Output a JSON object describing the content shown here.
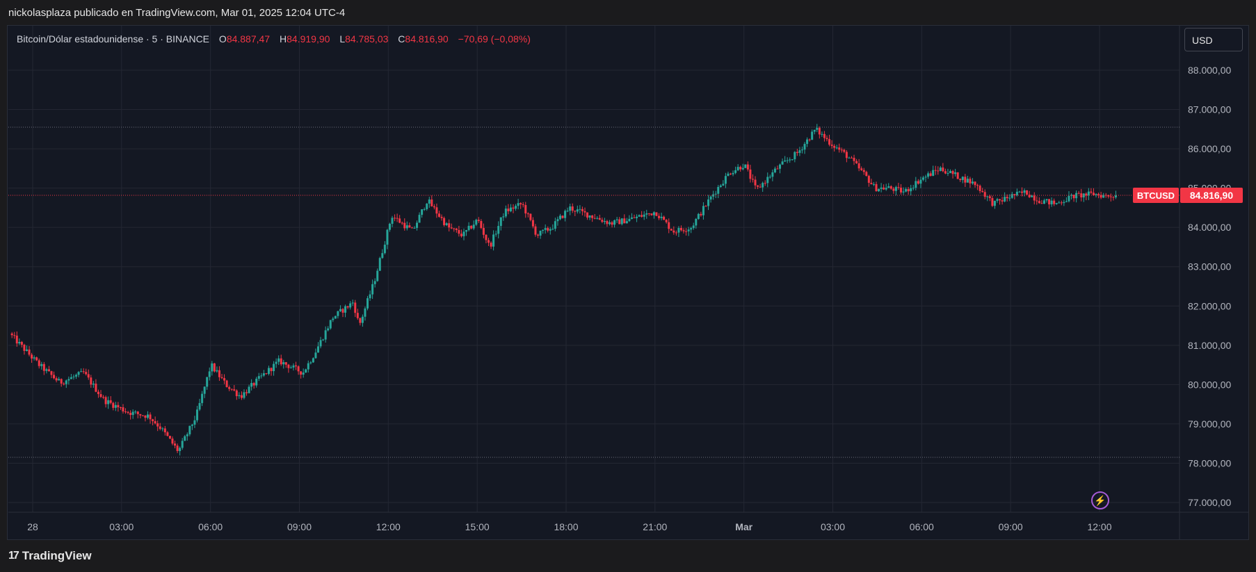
{
  "header": {
    "publisher_text": "nickolasplaza publicado en TradingView.com, Mar 01, 2025 12:04 UTC-4"
  },
  "symbol": {
    "name": "Bitcoin/Dólar estadounidense · 5 · BINANCE",
    "open_label": "O",
    "open": "84.887,47",
    "high_label": "H",
    "high": "84.919,90",
    "low_label": "L",
    "low": "84.785,03",
    "close_label": "C",
    "close": "84.816,90",
    "change": "−70,69 (−0,08%)"
  },
  "currency_button": {
    "label": "USD"
  },
  "price_tag": {
    "ticker": "BTCUSD",
    "price": "84.816,90"
  },
  "footer": {
    "brand": "TradingView"
  },
  "icons": {
    "flash": "lightning-icon",
    "logo": "tradingview-logo-icon"
  },
  "colors": {
    "up": "#26a69a",
    "down": "#f23645",
    "background": "#141823",
    "grid": "#242733",
    "text": "#b2b5be",
    "price_line": "#f23645",
    "level_line": "#6a6d78"
  },
  "chart_data": {
    "type": "candlestick",
    "y_ticks": [
      {
        "value": 77000,
        "label": "77.000,00"
      },
      {
        "value": 78000,
        "label": "78.000,00"
      },
      {
        "value": 79000,
        "label": "79.000,00"
      },
      {
        "value": 80000,
        "label": "80.000,00"
      },
      {
        "value": 81000,
        "label": "81.000,00"
      },
      {
        "value": 82000,
        "label": "82.000,00"
      },
      {
        "value": 83000,
        "label": "83.000,00"
      },
      {
        "value": 84000,
        "label": "84.000,00"
      },
      {
        "value": 85000,
        "label": "85.000,00"
      },
      {
        "value": 86000,
        "label": "86.000,00"
      },
      {
        "value": 87000,
        "label": "87.000,00"
      },
      {
        "value": 88000,
        "label": "88.000,00"
      }
    ],
    "x_ticks": [
      {
        "hour": 0,
        "label": "28",
        "bold": false
      },
      {
        "hour": 3,
        "label": "03:00",
        "bold": false
      },
      {
        "hour": 6,
        "label": "06:00",
        "bold": false
      },
      {
        "hour": 9,
        "label": "09:00",
        "bold": false
      },
      {
        "hour": 12,
        "label": "12:00",
        "bold": false
      },
      {
        "hour": 15,
        "label": "15:00",
        "bold": false
      },
      {
        "hour": 18,
        "label": "18:00",
        "bold": false
      },
      {
        "hour": 21,
        "label": "21:00",
        "bold": false
      },
      {
        "hour": 24,
        "label": "Mar",
        "bold": true
      },
      {
        "hour": 27,
        "label": "03:00",
        "bold": false
      },
      {
        "hour": 30,
        "label": "06:00",
        "bold": false
      },
      {
        "hour": 33,
        "label": "09:00",
        "bold": false
      },
      {
        "hour": 36,
        "label": "12:00",
        "bold": false
      }
    ],
    "y_range": [
      76800,
      88500
    ],
    "x_range_hours": [
      -0.8,
      38.2
    ],
    "last_price": 84816.9,
    "high_level": 86550,
    "low_level": 78150,
    "keypoints": [
      [
        -0.7,
        81300
      ],
      [
        0.3,
        80500
      ],
      [
        1.0,
        80050
      ],
      [
        1.8,
        80300
      ],
      [
        2.5,
        79600
      ],
      [
        3.3,
        79300
      ],
      [
        4.0,
        79200
      ],
      [
        4.4,
        78900
      ],
      [
        5.0,
        78300
      ],
      [
        5.6,
        79200
      ],
      [
        6.1,
        80500
      ],
      [
        6.6,
        80000
      ],
      [
        7.1,
        79700
      ],
      [
        7.8,
        80200
      ],
      [
        8.4,
        80600
      ],
      [
        9.2,
        80300
      ],
      [
        9.6,
        80800
      ],
      [
        10.2,
        81700
      ],
      [
        10.9,
        82100
      ],
      [
        11.1,
        81500
      ],
      [
        11.6,
        82600
      ],
      [
        12.2,
        84300
      ],
      [
        12.9,
        83900
      ],
      [
        13.4,
        84700
      ],
      [
        14.1,
        84000
      ],
      [
        14.6,
        83800
      ],
      [
        15.1,
        84200
      ],
      [
        15.5,
        83500
      ],
      [
        16.0,
        84400
      ],
      [
        16.6,
        84600
      ],
      [
        17.1,
        83800
      ],
      [
        17.6,
        84000
      ],
      [
        18.2,
        84500
      ],
      [
        18.9,
        84300
      ],
      [
        19.6,
        84100
      ],
      [
        20.2,
        84200
      ],
      [
        21.1,
        84400
      ],
      [
        21.7,
        83900
      ],
      [
        22.3,
        84000
      ],
      [
        23.0,
        84800
      ],
      [
        23.6,
        85400
      ],
      [
        24.1,
        85600
      ],
      [
        24.5,
        84950
      ],
      [
        25.2,
        85500
      ],
      [
        25.9,
        85900
      ],
      [
        26.2,
        86200
      ],
      [
        26.5,
        86500
      ],
      [
        27.0,
        86150
      ],
      [
        27.6,
        85800
      ],
      [
        28.2,
        85300
      ],
      [
        28.5,
        85000
      ],
      [
        29.0,
        85000
      ],
      [
        29.5,
        84900
      ],
      [
        30.0,
        85200
      ],
      [
        30.7,
        85500
      ],
      [
        31.3,
        85300
      ],
      [
        31.9,
        85100
      ],
      [
        32.5,
        84600
      ],
      [
        33.1,
        84800
      ],
      [
        33.6,
        84900
      ],
      [
        34.0,
        84700
      ],
      [
        34.6,
        84600
      ],
      [
        35.2,
        84800
      ],
      [
        35.9,
        84850
      ],
      [
        36.3,
        84800
      ],
      [
        36.6,
        84817
      ]
    ]
  }
}
